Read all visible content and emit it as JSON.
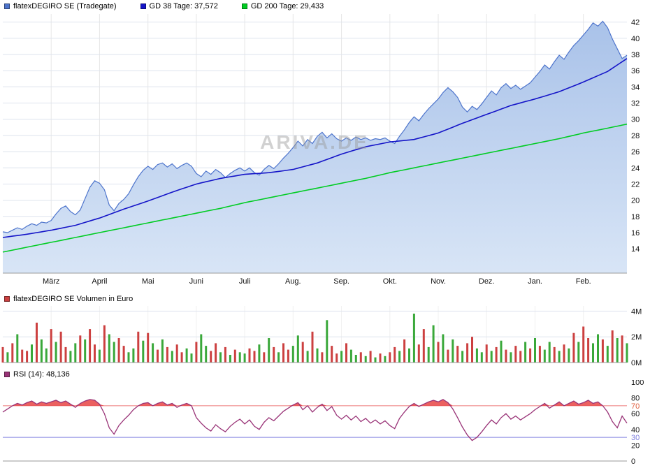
{
  "watermark": "ARIVA.DE",
  "legend": {
    "price": "flatexDEGIRO SE (Tradegate)",
    "gd38": "GD 38 Tage: 37,572",
    "gd200": "GD 200 Tage: 29,433",
    "volume": "flatexDEGIRO SE Volumen in Euro",
    "rsi": "RSI (14): 48,136"
  },
  "colors": {
    "grid": "#dde3ee",
    "vgrid": "#e6e6e6",
    "axis": "#999999",
    "text": "#111111",
    "watermark": "#9a9a9a"
  },
  "chart_data": [
    {
      "type": "area",
      "title": "flatexDEGIRO SE (Tradegate) with GD 38 and GD 200 moving averages",
      "ylim": [
        11,
        43
      ],
      "yticks": [
        42,
        40,
        38,
        36,
        34,
        32,
        30,
        28,
        26,
        24,
        22,
        20,
        18,
        16,
        14
      ],
      "x_labels": [
        "März",
        "April",
        "Mai",
        "Juni",
        "Juli",
        "Aug.",
        "Sep.",
        "Okt.",
        "Nov.",
        "Dez.",
        "Jan.",
        "Feb."
      ],
      "month_idx": [
        10,
        20,
        30,
        40,
        50,
        60,
        70,
        80,
        90,
        100,
        110,
        120
      ],
      "area_top": "#a9c2e9",
      "area_bottom": "#d8e5f6",
      "legend_position": "top-left",
      "series": [
        {
          "name": "flatexDEGIRO SE (Tradegate)",
          "type": "area-line",
          "color": "#4d74cc",
          "values": [
            16.1,
            16.0,
            16.3,
            16.6,
            16.4,
            16.8,
            17.1,
            16.9,
            17.3,
            17.2,
            17.5,
            18.3,
            19.0,
            19.3,
            18.6,
            18.2,
            18.8,
            20.2,
            21.6,
            22.4,
            22.1,
            21.3,
            19.4,
            18.7,
            19.6,
            20.1,
            20.8,
            21.9,
            22.9,
            23.7,
            24.2,
            23.8,
            24.4,
            24.6,
            24.1,
            24.5,
            23.9,
            24.3,
            24.6,
            24.2,
            23.3,
            22.9,
            23.6,
            23.2,
            23.8,
            23.4,
            22.8,
            23.3,
            23.7,
            24.0,
            23.6,
            24.0,
            23.4,
            23.1,
            23.8,
            24.3,
            23.9,
            24.5,
            25.2,
            25.8,
            26.5,
            27.3,
            26.7,
            27.5,
            27.0,
            27.9,
            28.4,
            27.7,
            28.2,
            27.6,
            27.3,
            27.7,
            27.4,
            27.8,
            27.5,
            27.7,
            27.4,
            27.6,
            27.5,
            27.7,
            27.3,
            27.0,
            27.9,
            28.7,
            29.6,
            30.3,
            29.8,
            30.6,
            31.3,
            31.9,
            32.5,
            33.3,
            33.9,
            33.4,
            32.7,
            31.5,
            30.9,
            31.6,
            31.2,
            31.9,
            32.7,
            33.5,
            33.0,
            33.9,
            34.4,
            33.8,
            34.2,
            33.7,
            34.1,
            34.5,
            35.2,
            35.9,
            36.7,
            36.2,
            37.1,
            37.9,
            37.4,
            38.3,
            39.1,
            39.7,
            40.4,
            41.1,
            41.9,
            41.5,
            42.1,
            41.3,
            39.9,
            38.7,
            37.5,
            37.9
          ]
        },
        {
          "name": "GD 38 Tage",
          "type": "line",
          "color": "#1414c8",
          "stride": 5,
          "last_value": 37.572,
          "values": [
            15.4,
            15.8,
            16.3,
            16.9,
            17.8,
            18.9,
            19.9,
            21.0,
            22.0,
            22.7,
            23.2,
            23.4,
            23.8,
            24.6,
            25.7,
            26.6,
            27.2,
            27.5,
            28.3,
            29.5,
            30.6,
            31.7,
            32.5,
            33.4,
            34.6,
            35.9,
            37.5
          ]
        },
        {
          "name": "GD 200 Tage",
          "type": "line",
          "color": "#00cc22",
          "stride": 5,
          "last_value": 29.433,
          "values": [
            13.6,
            14.2,
            14.8,
            15.4,
            16.0,
            16.6,
            17.2,
            17.8,
            18.4,
            19.0,
            19.7,
            20.3,
            20.9,
            21.5,
            22.1,
            22.7,
            23.4,
            24.0,
            24.6,
            25.2,
            25.8,
            26.4,
            27.0,
            27.6,
            28.3,
            28.9,
            29.4
          ]
        }
      ]
    },
    {
      "type": "bar",
      "title": "flatexDEGIRO SE Volumen in Euro",
      "ylim": [
        0,
        4.4
      ],
      "yticks": [
        {
          "v": 4,
          "label": "4M"
        },
        {
          "v": 2,
          "label": "2M"
        },
        {
          "v": 0,
          "label": "0M"
        }
      ],
      "red": "#cc4040",
      "green": "#3aa83a",
      "values": [
        1.2,
        0.8,
        1.5,
        2.2,
        1.0,
        0.9,
        1.4,
        3.1,
        1.8,
        1.1,
        2.6,
        1.6,
        2.4,
        1.2,
        0.9,
        1.5,
        2.1,
        1.8,
        2.6,
        1.4,
        1.0,
        2.9,
        2.2,
        1.6,
        1.9,
        1.3,
        0.8,
        1.1,
        2.4,
        1.7,
        2.3,
        1.5,
        1.0,
        1.8,
        1.2,
        0.9,
        1.4,
        0.8,
        1.1,
        0.7,
        1.6,
        2.2,
        1.3,
        0.9,
        1.5,
        0.8,
        1.2,
        0.6,
        1.0,
        0.8,
        0.7,
        1.1,
        0.9,
        1.4,
        0.8,
        1.9,
        1.2,
        0.8,
        1.5,
        1.0,
        1.3,
        2.1,
        1.6,
        0.9,
        2.4,
        1.1,
        0.8,
        3.3,
        1.3,
        0.7,
        0.9,
        1.5,
        1.0,
        0.6,
        0.8,
        0.5,
        0.9,
        0.4,
        0.7,
        0.5,
        0.8,
        1.2,
        0.9,
        1.8,
        1.1,
        3.8,
        1.4,
        2.6,
        1.2,
        2.9,
        1.6,
        2.2,
        1.0,
        1.8,
        1.3,
        0.9,
        1.5,
        2.0,
        1.1,
        0.8,
        1.4,
        0.9,
        1.2,
        1.7,
        1.0,
        0.8,
        1.3,
        0.9,
        1.6,
        1.1,
        1.9,
        1.3,
        1.0,
        1.6,
        1.2,
        0.9,
        1.4,
        1.1,
        2.3,
        1.6,
        2.8,
        1.9,
        1.5,
        2.2,
        1.8,
        1.3,
        2.5,
        1.9,
        2.1,
        1.5
      ],
      "colors": "rgrgrrgrggrgrrggrgrrgrggrrggrgrgrgrgrrggrggrrgrgrggrrgrgrgrrggrgrgrgrrgrggrgrgrgrrgrggrrggrgrgrgrrggrgrgrgrrgrgrggrgrgrgrrggrgrgr"
    },
    {
      "type": "line",
      "title": "RSI (14)",
      "last_value": 48.136,
      "ylim": [
        0,
        100
      ],
      "yticks": [
        {
          "v": 100,
          "label": "100"
        },
        {
          "v": 80,
          "label": "80"
        },
        {
          "v": 70,
          "label": "70",
          "color": "#e06040"
        },
        {
          "v": 60,
          "label": "60"
        },
        {
          "v": 40,
          "label": "40"
        },
        {
          "v": 30,
          "label": "30",
          "color": "#8080dd"
        },
        {
          "v": 20,
          "label": "20"
        },
        {
          "v": 0,
          "label": "0"
        }
      ],
      "color": "#993377",
      "overbought_fill": "#e84444",
      "hlines": [
        {
          "v": 70,
          "color": "#ee7777"
        },
        {
          "v": 30,
          "color": "#8585e0"
        }
      ],
      "fill_above": 70,
      "values": [
        62,
        66,
        70,
        73,
        71,
        74,
        76,
        72,
        75,
        73,
        75,
        77,
        74,
        76,
        72,
        68,
        73,
        76,
        78,
        77,
        72,
        60,
        42,
        34,
        45,
        52,
        58,
        65,
        70,
        73,
        74,
        70,
        73,
        75,
        71,
        73,
        68,
        71,
        73,
        70,
        55,
        48,
        42,
        38,
        46,
        41,
        37,
        44,
        49,
        53,
        47,
        52,
        44,
        40,
        49,
        55,
        51,
        57,
        63,
        67,
        71,
        74,
        65,
        70,
        62,
        68,
        72,
        64,
        69,
        58,
        53,
        58,
        52,
        57,
        50,
        54,
        48,
        52,
        47,
        51,
        45,
        41,
        54,
        62,
        69,
        73,
        69,
        72,
        75,
        77,
        75,
        78,
        74,
        66,
        55,
        43,
        33,
        26,
        30,
        37,
        45,
        52,
        47,
        55,
        60,
        53,
        57,
        52,
        56,
        60,
        65,
        69,
        73,
        67,
        71,
        75,
        70,
        73,
        76,
        72,
        74,
        77,
        73,
        75,
        70,
        62,
        50,
        42,
        57,
        48
      ]
    }
  ]
}
